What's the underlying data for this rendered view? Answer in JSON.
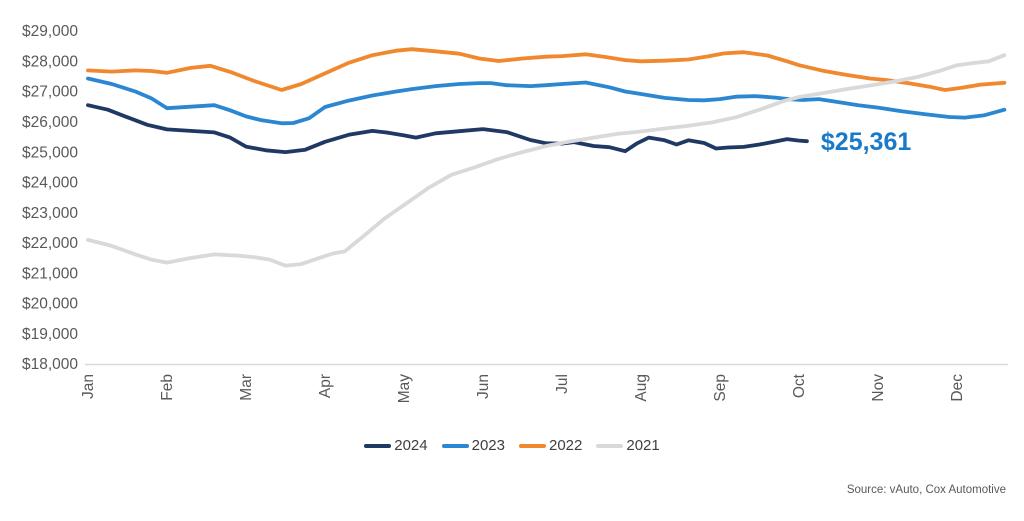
{
  "chart_data": {
    "type": "line",
    "title": "",
    "y_axis": {
      "min": 18000,
      "max": 29000,
      "step": 1000,
      "tick_labels": [
        "$18,000",
        "$19,000",
        "$20,000",
        "$21,000",
        "$22,000",
        "$23,000",
        "$24,000",
        "$25,000",
        "$26,000",
        "$27,000",
        "$28,000",
        "$29,000"
      ]
    },
    "x_axis": {
      "labels": [
        "Jan",
        "Feb",
        "Mar",
        "Apr",
        "May",
        "Jun",
        "Jul",
        "Aug",
        "Sep",
        "Oct",
        "Nov",
        "Dec"
      ]
    },
    "series": [
      {
        "name": "2024",
        "color": "#1F3864",
        "points": [
          [
            0.0,
            26550
          ],
          [
            0.25,
            26400
          ],
          [
            0.5,
            26150
          ],
          [
            0.75,
            25900
          ],
          [
            1.0,
            25750
          ],
          [
            1.3,
            25700
          ],
          [
            1.6,
            25650
          ],
          [
            1.8,
            25480
          ],
          [
            2.0,
            25180
          ],
          [
            2.25,
            25060
          ],
          [
            2.5,
            25000
          ],
          [
            2.75,
            25080
          ],
          [
            3.0,
            25340
          ],
          [
            3.3,
            25570
          ],
          [
            3.6,
            25700
          ],
          [
            3.8,
            25640
          ],
          [
            4.0,
            25550
          ],
          [
            4.15,
            25480
          ],
          [
            4.4,
            25620
          ],
          [
            4.7,
            25690
          ],
          [
            5.0,
            25760
          ],
          [
            5.3,
            25660
          ],
          [
            5.6,
            25400
          ],
          [
            5.8,
            25290
          ],
          [
            6.0,
            25280
          ],
          [
            6.15,
            25330
          ],
          [
            6.4,
            25200
          ],
          [
            6.6,
            25160
          ],
          [
            6.8,
            25030
          ],
          [
            6.95,
            25290
          ],
          [
            7.1,
            25480
          ],
          [
            7.3,
            25390
          ],
          [
            7.45,
            25250
          ],
          [
            7.6,
            25390
          ],
          [
            7.8,
            25300
          ],
          [
            7.95,
            25120
          ],
          [
            8.1,
            25150
          ],
          [
            8.3,
            25170
          ],
          [
            8.5,
            25250
          ],
          [
            8.7,
            25350
          ],
          [
            8.85,
            25430
          ],
          [
            9.0,
            25380
          ],
          [
            9.1,
            25361
          ]
        ]
      },
      {
        "name": "2023",
        "color": "#2B87D1",
        "points": [
          [
            0.0,
            27430
          ],
          [
            0.3,
            27250
          ],
          [
            0.6,
            27000
          ],
          [
            0.8,
            26780
          ],
          [
            1.0,
            26450
          ],
          [
            1.3,
            26500
          ],
          [
            1.6,
            26550
          ],
          [
            1.8,
            26380
          ],
          [
            2.0,
            26180
          ],
          [
            2.2,
            26050
          ],
          [
            2.45,
            25950
          ],
          [
            2.6,
            25960
          ],
          [
            2.8,
            26120
          ],
          [
            3.0,
            26490
          ],
          [
            3.3,
            26700
          ],
          [
            3.6,
            26870
          ],
          [
            3.9,
            27000
          ],
          [
            4.1,
            27080
          ],
          [
            4.4,
            27180
          ],
          [
            4.7,
            27250
          ],
          [
            4.95,
            27280
          ],
          [
            5.1,
            27280
          ],
          [
            5.3,
            27210
          ],
          [
            5.6,
            27180
          ],
          [
            5.8,
            27210
          ],
          [
            6.0,
            27250
          ],
          [
            6.3,
            27300
          ],
          [
            6.6,
            27140
          ],
          [
            6.8,
            27000
          ],
          [
            7.0,
            26920
          ],
          [
            7.3,
            26790
          ],
          [
            7.6,
            26720
          ],
          [
            7.8,
            26710
          ],
          [
            8.0,
            26750
          ],
          [
            8.2,
            26830
          ],
          [
            8.45,
            26850
          ],
          [
            8.7,
            26800
          ],
          [
            8.9,
            26740
          ],
          [
            9.05,
            26720
          ],
          [
            9.25,
            26750
          ],
          [
            9.5,
            26650
          ],
          [
            9.75,
            26550
          ],
          [
            10.0,
            26470
          ],
          [
            10.3,
            26350
          ],
          [
            10.6,
            26250
          ],
          [
            10.9,
            26160
          ],
          [
            11.1,
            26140
          ],
          [
            11.35,
            26220
          ],
          [
            11.6,
            26400
          ]
        ]
      },
      {
        "name": "2022",
        "color": "#F0882D",
        "points": [
          [
            0.0,
            27700
          ],
          [
            0.3,
            27660
          ],
          [
            0.6,
            27700
          ],
          [
            0.8,
            27680
          ],
          [
            1.0,
            27620
          ],
          [
            1.3,
            27780
          ],
          [
            1.55,
            27850
          ],
          [
            1.8,
            27650
          ],
          [
            2.1,
            27350
          ],
          [
            2.45,
            27050
          ],
          [
            2.7,
            27250
          ],
          [
            3.0,
            27600
          ],
          [
            3.3,
            27950
          ],
          [
            3.6,
            28200
          ],
          [
            3.9,
            28350
          ],
          [
            4.1,
            28400
          ],
          [
            4.4,
            28330
          ],
          [
            4.7,
            28250
          ],
          [
            4.95,
            28090
          ],
          [
            5.2,
            28010
          ],
          [
            5.5,
            28090
          ],
          [
            5.8,
            28150
          ],
          [
            6.0,
            28170
          ],
          [
            6.3,
            28230
          ],
          [
            6.55,
            28140
          ],
          [
            6.8,
            28040
          ],
          [
            7.0,
            28000
          ],
          [
            7.3,
            28020
          ],
          [
            7.6,
            28060
          ],
          [
            7.85,
            28160
          ],
          [
            8.05,
            28260
          ],
          [
            8.3,
            28300
          ],
          [
            8.6,
            28190
          ],
          [
            8.85,
            28000
          ],
          [
            9.0,
            27870
          ],
          [
            9.3,
            27690
          ],
          [
            9.6,
            27550
          ],
          [
            9.9,
            27430
          ],
          [
            10.1,
            27380
          ],
          [
            10.4,
            27270
          ],
          [
            10.65,
            27160
          ],
          [
            10.85,
            27050
          ],
          [
            11.05,
            27120
          ],
          [
            11.3,
            27230
          ],
          [
            11.6,
            27290
          ]
        ]
      },
      {
        "name": "2021",
        "color": "#D9D9D9",
        "points": [
          [
            0.0,
            22100
          ],
          [
            0.3,
            21900
          ],
          [
            0.6,
            21620
          ],
          [
            0.8,
            21450
          ],
          [
            1.0,
            21350
          ],
          [
            1.3,
            21500
          ],
          [
            1.6,
            21620
          ],
          [
            1.9,
            21580
          ],
          [
            2.1,
            21530
          ],
          [
            2.3,
            21450
          ],
          [
            2.5,
            21250
          ],
          [
            2.7,
            21300
          ],
          [
            2.9,
            21480
          ],
          [
            3.1,
            21650
          ],
          [
            3.25,
            21720
          ],
          [
            3.5,
            22250
          ],
          [
            3.75,
            22800
          ],
          [
            4.0,
            23250
          ],
          [
            4.3,
            23800
          ],
          [
            4.6,
            24250
          ],
          [
            4.9,
            24500
          ],
          [
            5.2,
            24780
          ],
          [
            5.5,
            25000
          ],
          [
            5.8,
            25200
          ],
          [
            6.1,
            25350
          ],
          [
            6.4,
            25480
          ],
          [
            6.7,
            25600
          ],
          [
            7.0,
            25680
          ],
          [
            7.3,
            25780
          ],
          [
            7.6,
            25870
          ],
          [
            7.9,
            25980
          ],
          [
            8.2,
            26150
          ],
          [
            8.5,
            26400
          ],
          [
            8.8,
            26680
          ],
          [
            9.0,
            26820
          ],
          [
            9.3,
            26950
          ],
          [
            9.6,
            27080
          ],
          [
            9.9,
            27200
          ],
          [
            10.2,
            27330
          ],
          [
            10.5,
            27480
          ],
          [
            10.8,
            27700
          ],
          [
            11.0,
            27870
          ],
          [
            11.2,
            27940
          ],
          [
            11.4,
            28000
          ],
          [
            11.6,
            28200
          ]
        ]
      }
    ],
    "annotation": {
      "text": "$25,361",
      "value": 25361,
      "series": "2024",
      "color": "#1B7AC7"
    },
    "legend_position": "bottom-center",
    "grid": "off",
    "axis_color": "#D9D9D9",
    "label_color": "#595959",
    "source": "Source: vAuto, Cox Automotive"
  }
}
